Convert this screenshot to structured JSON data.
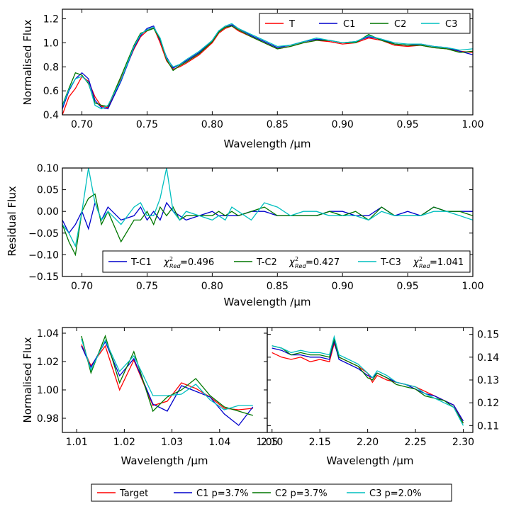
{
  "colors": {
    "T": "#ff0000",
    "C1": "#0000cc",
    "C2": "#007700",
    "C3": "#00bfbf"
  },
  "chart_data": [
    {
      "id": "top",
      "type": "line",
      "xlabel": "Wavelength /μm",
      "ylabel": "Normalised Flux",
      "xlim": [
        0.685,
        1.0
      ],
      "ylim": [
        0.4,
        1.28
      ],
      "xticks": [
        "0.70",
        "0.75",
        "0.80",
        "0.85",
        "0.90",
        "0.95",
        "1.00"
      ],
      "yticks": [
        "0.4",
        "0.6",
        "0.8",
        "1.0",
        "1.2"
      ],
      "legend": [
        "T",
        "C1",
        "C2",
        "C3"
      ],
      "legend_position": "top-right",
      "x": [
        0.685,
        0.69,
        0.695,
        0.7,
        0.705,
        0.71,
        0.715,
        0.72,
        0.73,
        0.74,
        0.745,
        0.75,
        0.755,
        0.76,
        0.765,
        0.77,
        0.775,
        0.78,
        0.79,
        0.8,
        0.805,
        0.81,
        0.815,
        0.82,
        0.83,
        0.84,
        0.85,
        0.86,
        0.87,
        0.88,
        0.89,
        0.9,
        0.91,
        0.92,
        0.93,
        0.94,
        0.95,
        0.96,
        0.97,
        0.98,
        0.99,
        1.0
      ],
      "series": [
        {
          "name": "T",
          "values": [
            0.4,
            0.55,
            0.62,
            0.72,
            0.68,
            0.55,
            0.47,
            0.46,
            0.7,
            0.95,
            1.05,
            1.1,
            1.13,
            1.0,
            0.85,
            0.78,
            0.8,
            0.83,
            0.9,
            1.0,
            1.08,
            1.12,
            1.14,
            1.1,
            1.05,
            1.0,
            0.95,
            0.97,
            1.0,
            1.02,
            1.01,
            0.99,
            1.0,
            1.04,
            1.02,
            0.98,
            0.97,
            0.98,
            0.96,
            0.95,
            0.93,
            0.92
          ]
        },
        {
          "name": "C1",
          "values": [
            0.45,
            0.6,
            0.7,
            0.75,
            0.7,
            0.52,
            0.46,
            0.45,
            0.68,
            0.96,
            1.06,
            1.12,
            1.14,
            1.02,
            0.88,
            0.79,
            0.82,
            0.85,
            0.92,
            1.02,
            1.1,
            1.13,
            1.15,
            1.12,
            1.06,
            1.01,
            0.96,
            0.98,
            1.01,
            1.03,
            1.02,
            1.0,
            1.01,
            1.05,
            1.03,
            0.99,
            0.98,
            0.99,
            0.97,
            0.96,
            0.93,
            0.9
          ]
        },
        {
          "name": "C2",
          "values": [
            0.48,
            0.62,
            0.75,
            0.73,
            0.66,
            0.5,
            0.48,
            0.47,
            0.72,
            0.98,
            1.08,
            1.1,
            1.12,
            1.03,
            0.86,
            0.77,
            0.81,
            0.84,
            0.91,
            1.01,
            1.09,
            1.13,
            1.14,
            1.11,
            1.05,
            1.0,
            0.95,
            0.97,
            1.0,
            1.02,
            1.02,
            1.0,
            1.0,
            1.07,
            1.02,
            0.99,
            0.98,
            0.98,
            0.96,
            0.95,
            0.92,
            0.93
          ]
        },
        {
          "name": "C3",
          "values": [
            0.47,
            0.61,
            0.7,
            0.72,
            0.67,
            0.48,
            0.45,
            0.48,
            0.69,
            0.97,
            1.07,
            1.11,
            1.13,
            1.04,
            0.87,
            0.8,
            0.82,
            0.86,
            0.93,
            1.02,
            1.1,
            1.14,
            1.16,
            1.12,
            1.07,
            1.02,
            0.97,
            0.98,
            1.01,
            1.04,
            1.02,
            1.0,
            1.01,
            1.06,
            1.03,
            1.0,
            0.99,
            0.99,
            0.97,
            0.96,
            0.94,
            0.95
          ]
        }
      ]
    },
    {
      "id": "residual",
      "type": "line",
      "xlabel": "Wavelength /μm",
      "ylabel": "Residual Flux",
      "xlim": [
        0.685,
        1.0
      ],
      "ylim": [
        -0.15,
        0.1
      ],
      "xticks": [
        "0.70",
        "0.75",
        "0.80",
        "0.85",
        "0.90",
        "0.95",
        "1.00"
      ],
      "yticks": [
        "−0.15",
        "−0.10",
        "−0.05",
        "0.00",
        "0.05",
        "0.10"
      ],
      "legend_position": "bottom-right",
      "legend": [
        {
          "label": "T-C1",
          "chi_label": "χ",
          "chi_sup": "2",
          "chi_sub": "Red",
          "chi_value": "=0.496"
        },
        {
          "label": "T-C2",
          "chi_label": "χ",
          "chi_sup": "2",
          "chi_sub": "Red",
          "chi_value": "=0.427"
        },
        {
          "label": "T-C3",
          "chi_label": "χ",
          "chi_sup": "2",
          "chi_sub": "Red",
          "chi_value": "=1.041"
        }
      ],
      "x": [
        0.685,
        0.69,
        0.695,
        0.7,
        0.705,
        0.71,
        0.715,
        0.72,
        0.73,
        0.74,
        0.745,
        0.75,
        0.755,
        0.76,
        0.765,
        0.77,
        0.775,
        0.78,
        0.79,
        0.8,
        0.805,
        0.81,
        0.815,
        0.82,
        0.83,
        0.84,
        0.85,
        0.86,
        0.87,
        0.88,
        0.89,
        0.9,
        0.91,
        0.92,
        0.93,
        0.94,
        0.95,
        0.96,
        0.97,
        0.98,
        0.99,
        1.0
      ],
      "series": [
        {
          "name": "T-C1",
          "values": [
            -0.02,
            -0.05,
            -0.03,
            0.0,
            -0.04,
            0.02,
            -0.02,
            0.01,
            -0.02,
            -0.01,
            0.01,
            -0.02,
            0.0,
            -0.02,
            0.02,
            0.0,
            -0.01,
            -0.02,
            -0.01,
            0.0,
            -0.01,
            -0.01,
            -0.01,
            -0.01,
            0.0,
            0.0,
            -0.01,
            -0.01,
            -0.01,
            -0.01,
            0.0,
            0.0,
            -0.01,
            -0.01,
            0.01,
            -0.01,
            0.0,
            -0.01,
            0.01,
            0.0,
            0.0,
            0.0
          ]
        },
        {
          "name": "T-C2",
          "values": [
            -0.03,
            -0.07,
            -0.1,
            0.0,
            0.03,
            0.04,
            -0.03,
            0.0,
            -0.07,
            -0.02,
            -0.02,
            0.0,
            -0.03,
            0.01,
            -0.01,
            0.01,
            -0.02,
            -0.01,
            -0.01,
            -0.01,
            0.0,
            -0.01,
            0.0,
            -0.01,
            0.0,
            0.01,
            -0.01,
            -0.01,
            -0.01,
            -0.01,
            0.0,
            -0.01,
            0.0,
            -0.02,
            0.01,
            -0.01,
            -0.01,
            -0.01,
            0.01,
            0.0,
            0.0,
            -0.01
          ]
        },
        {
          "name": "T-C3",
          "values": [
            -0.03,
            -0.05,
            -0.08,
            0.0,
            0.1,
            0.02,
            -0.02,
            0.0,
            -0.03,
            0.01,
            0.02,
            -0.01,
            -0.01,
            0.03,
            0.1,
            0.0,
            -0.02,
            0.0,
            -0.01,
            -0.02,
            -0.01,
            -0.02,
            0.01,
            0.0,
            -0.02,
            0.02,
            0.01,
            -0.01,
            0.0,
            0.0,
            -0.01,
            -0.01,
            -0.01,
            -0.02,
            0.0,
            -0.01,
            -0.01,
            -0.01,
            0.0,
            0.0,
            -0.01,
            -0.02
          ]
        }
      ]
    },
    {
      "id": "bottom-left",
      "type": "line",
      "xlabel": "Wavelength /μm",
      "ylabel": "Normalised Flux",
      "xlim": [
        1.007,
        1.05
      ],
      "ylim": [
        0.97,
        1.044
      ],
      "xticks": [
        "1.01",
        "1.02",
        "1.03",
        "1.04",
        "1.05"
      ],
      "yticks": [
        "0.98",
        "1.00",
        "1.02",
        "1.04"
      ],
      "x": [
        1.011,
        1.013,
        1.016,
        1.019,
        1.022,
        1.026,
        1.029,
        1.032,
        1.035,
        1.038,
        1.041,
        1.044,
        1.047
      ],
      "series": [
        {
          "name": "Target",
          "values": [
            1.032,
            1.017,
            1.031,
            1.0,
            1.021,
            0.989,
            0.992,
            1.005,
            1.001,
            0.995,
            0.987,
            0.986,
            0.987
          ]
        },
        {
          "name": "C1 p=3.7%",
          "values": [
            1.031,
            1.016,
            1.034,
            1.01,
            1.022,
            0.99,
            0.985,
            1.003,
            0.999,
            0.995,
            0.983,
            0.975,
            0.988
          ]
        },
        {
          "name": "C2 p=3.7%",
          "values": [
            1.038,
            1.012,
            1.038,
            1.005,
            1.027,
            0.985,
            0.995,
            1.0,
            1.008,
            0.996,
            0.988,
            0.985,
            0.982
          ]
        },
        {
          "name": "C3 p=2.0%",
          "values": [
            1.036,
            1.014,
            1.035,
            1.013,
            1.024,
            0.996,
            0.996,
            0.997,
            1.004,
            0.993,
            0.986,
            0.989,
            0.989
          ]
        }
      ]
    },
    {
      "id": "bottom-right",
      "type": "line",
      "xlabel": "Wavelength /μm",
      "ylabel": "",
      "xlim": [
        2.095,
        2.31
      ],
      "ylim": [
        0.107,
        0.153
      ],
      "xticks": [
        "2.10",
        "2.15",
        "2.20",
        "2.25",
        "2.30"
      ],
      "yticks": [
        "0.11",
        "0.12",
        "0.13",
        "0.14",
        "0.15"
      ],
      "y_axis_side": "right",
      "x": [
        2.1,
        2.11,
        2.12,
        2.13,
        2.14,
        2.15,
        2.16,
        2.165,
        2.17,
        2.18,
        2.19,
        2.2,
        2.205,
        2.21,
        2.22,
        2.23,
        2.24,
        2.25,
        2.26,
        2.27,
        2.28,
        2.29,
        2.3
      ],
      "series": [
        {
          "name": "Target",
          "values": [
            0.142,
            0.14,
            0.139,
            0.14,
            0.138,
            0.139,
            0.138,
            0.146,
            0.14,
            0.138,
            0.136,
            0.133,
            0.129,
            0.132,
            0.13,
            0.129,
            0.128,
            0.127,
            0.125,
            0.123,
            0.121,
            0.119,
            0.111
          ]
        },
        {
          "name": "C1 p=3.7%",
          "values": [
            0.144,
            0.143,
            0.141,
            0.141,
            0.14,
            0.14,
            0.139,
            0.147,
            0.139,
            0.137,
            0.135,
            0.132,
            0.131,
            0.133,
            0.131,
            0.129,
            0.128,
            0.126,
            0.124,
            0.123,
            0.121,
            0.119,
            0.112
          ]
        },
        {
          "name": "C2 p=3.7%",
          "values": [
            0.145,
            0.144,
            0.141,
            0.142,
            0.141,
            0.141,
            0.14,
            0.148,
            0.14,
            0.138,
            0.136,
            0.131,
            0.13,
            0.133,
            0.131,
            0.128,
            0.127,
            0.126,
            0.123,
            0.122,
            0.121,
            0.118,
            0.111
          ]
        },
        {
          "name": "C3 p=2.0%",
          "values": [
            0.145,
            0.144,
            0.142,
            0.143,
            0.142,
            0.142,
            0.141,
            0.149,
            0.141,
            0.139,
            0.137,
            0.133,
            0.131,
            0.134,
            0.132,
            0.129,
            0.128,
            0.127,
            0.124,
            0.122,
            0.12,
            0.118,
            0.11
          ]
        }
      ]
    }
  ],
  "bottom_legend": [
    "Target",
    "C1 p=3.7%",
    "C2 p=3.7%",
    "C3 p=2.0%"
  ]
}
